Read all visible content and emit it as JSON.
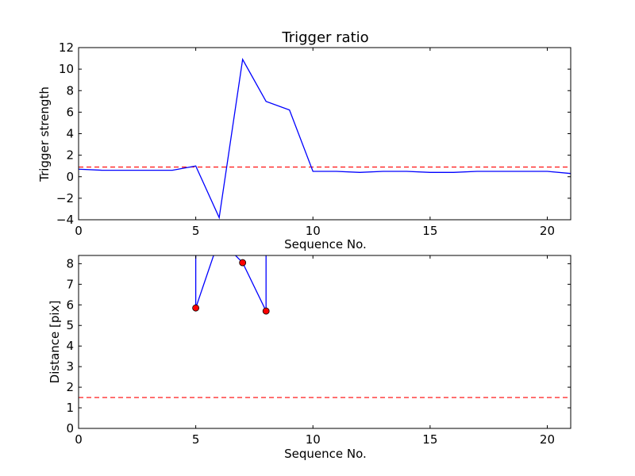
{
  "chart_data": [
    {
      "type": "line",
      "title": "Trigger ratio",
      "xlabel": "Sequence No.",
      "ylabel": "Trigger strength",
      "xlim": [
        0,
        21
      ],
      "ylim": [
        -4,
        12
      ],
      "xticks": [
        0,
        5,
        10,
        15,
        20
      ],
      "yticks": [
        -4,
        -2,
        0,
        2,
        4,
        6,
        8,
        10,
        12
      ],
      "xtick_labels": [
        "0",
        "5",
        "10",
        "15",
        "20"
      ],
      "ytick_labels": [
        "−4",
        "−2",
        "0",
        "2",
        "4",
        "6",
        "8",
        "10",
        "12"
      ],
      "series": [
        {
          "color": "#0000ff",
          "style": "solid",
          "x": [
            0,
            1,
            2,
            3,
            4,
            5,
            6,
            7,
            8,
            9,
            10,
            11,
            12,
            13,
            14,
            15,
            16,
            17,
            18,
            19,
            20,
            21
          ],
          "y": [
            0.7,
            0.6,
            0.6,
            0.6,
            0.6,
            1.0,
            -3.8,
            10.9,
            7.0,
            6.2,
            0.5,
            0.5,
            0.4,
            0.5,
            0.5,
            0.4,
            0.4,
            0.5,
            0.5,
            0.5,
            0.5,
            0.3
          ]
        }
      ],
      "threshold": {
        "y": 0.9,
        "color": "#ff0000",
        "style": "dashed"
      },
      "grid": false
    },
    {
      "type": "line",
      "title": "",
      "xlabel": "Sequence No.",
      "ylabel": "Distance [pix]",
      "xlim": [
        0,
        21
      ],
      "ylim": [
        0,
        8.4
      ],
      "xticks": [
        0,
        5,
        10,
        15,
        20
      ],
      "yticks": [
        0,
        1,
        2,
        3,
        4,
        5,
        6,
        7,
        8
      ],
      "xtick_labels": [
        "0",
        "5",
        "10",
        "15",
        "20"
      ],
      "ytick_labels": [
        "0",
        "1",
        "2",
        "3",
        "4",
        "5",
        "6",
        "7",
        "8"
      ],
      "series": [
        {
          "color": "#0000ff",
          "style": "solid",
          "x": [
            5,
            5,
            6,
            7,
            8,
            8
          ],
          "y": [
            9.5,
            5.85,
            9.2,
            8.05,
            5.7,
            9.5
          ]
        }
      ],
      "markers": {
        "color": "#ff0000",
        "x": [
          5,
          7,
          8
        ],
        "y": [
          5.85,
          8.05,
          5.7
        ]
      },
      "threshold": {
        "y": 1.5,
        "color": "#ff0000",
        "style": "dashed"
      },
      "grid": false
    }
  ]
}
